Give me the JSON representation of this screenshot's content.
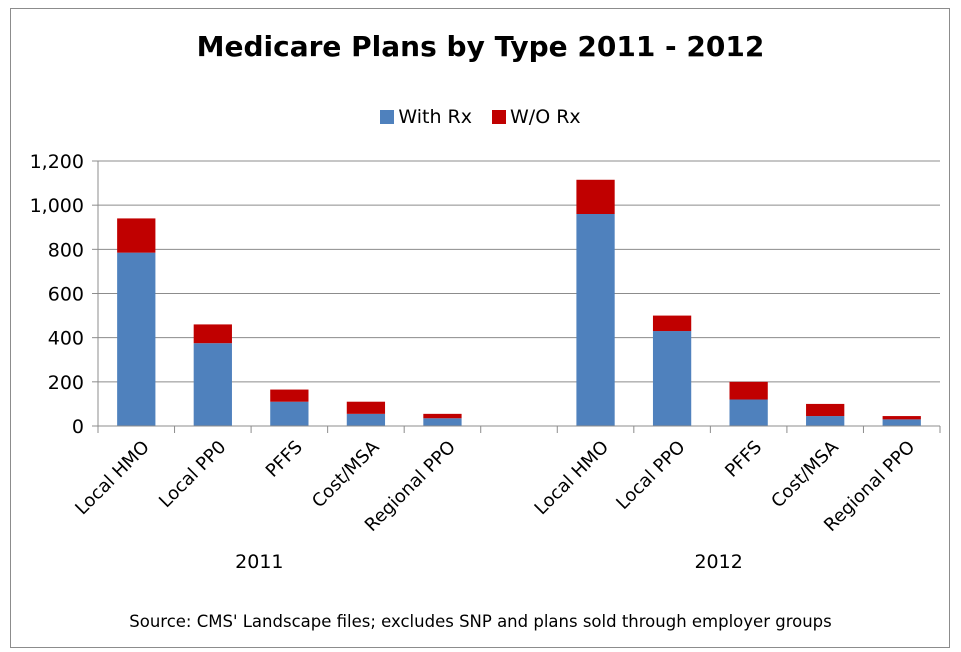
{
  "chart_data": {
    "type": "bar",
    "stacked": true,
    "title": "Medicare Plans by Type 2011 - 2012",
    "groups": [
      {
        "label": "2011",
        "categories": [
          "Local HMO",
          "Local PP0",
          "PFFS",
          "Cost/MSA",
          "Regional PPO"
        ]
      },
      {
        "label": "2012",
        "categories": [
          "Local HMO",
          "Local PPO",
          "PFFS",
          "Cost/MSA",
          "Regional PPO"
        ]
      }
    ],
    "series": [
      {
        "name": "With Rx",
        "color": "#4f81bd",
        "values": [
          785,
          375,
          110,
          55,
          35,
          960,
          430,
          120,
          45,
          30
        ]
      },
      {
        "name": "W/O Rx",
        "color": "#c00000",
        "values": [
          155,
          85,
          55,
          55,
          20,
          155,
          70,
          80,
          55,
          15
        ]
      }
    ],
    "ylim": [
      0,
      1200
    ],
    "yticks": [
      0,
      200,
      400,
      600,
      800,
      1000,
      1200
    ],
    "ytick_labels": [
      "0",
      "200",
      "400",
      "600",
      "800",
      "1,000",
      "1,200"
    ],
    "grid": true,
    "legend_position": "top",
    "source_note": "Source: CMS' Landscape files; excludes SNP and plans sold through employer groups"
  }
}
